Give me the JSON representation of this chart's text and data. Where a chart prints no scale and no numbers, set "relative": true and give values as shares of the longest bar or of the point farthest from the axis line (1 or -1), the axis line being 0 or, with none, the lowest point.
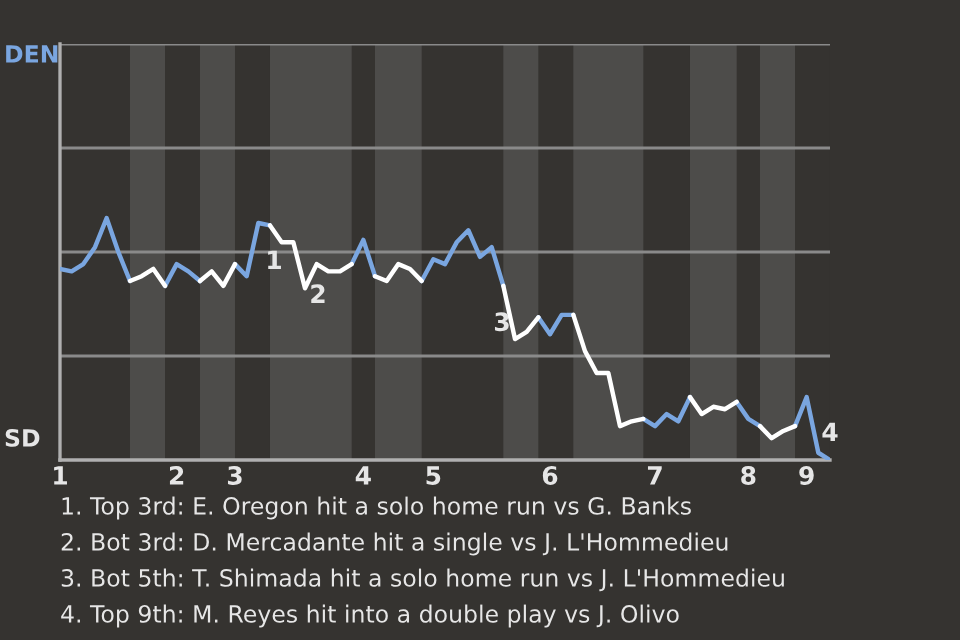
{
  "chart_data": {
    "type": "line",
    "relative": true,
    "categories": [
      "1",
      null,
      null,
      null,
      null,
      null,
      null,
      null,
      null,
      null,
      "2",
      null,
      null,
      null,
      null,
      "3",
      null,
      null,
      null,
      null,
      null,
      null,
      null,
      null,
      null,
      null,
      "4",
      null,
      null,
      null,
      null,
      null,
      "5",
      null,
      null,
      null,
      null,
      null,
      null,
      null,
      null,
      null,
      "6",
      null,
      null,
      null,
      null,
      null,
      null,
      null,
      null,
      "7",
      null,
      null,
      null,
      null,
      null,
      null,
      null,
      "8",
      null,
      null,
      null,
      null,
      "9",
      null,
      null
    ],
    "series": [
      {
        "color": "#7aa6e0",
        "values": [
          0.79,
          0.78,
          0.81,
          0.88,
          1,
          0.86,
          0.74,
          null,
          null,
          0.72,
          0.81,
          0.78,
          0.74,
          null,
          null,
          0.81,
          0.76,
          0.98,
          0.97,
          null,
          null,
          null,
          null,
          null,
          null,
          0.81,
          0.91,
          0.76,
          null,
          null,
          null,
          0.74,
          0.83,
          0.81,
          0.9,
          0.95,
          0.84,
          0.88,
          0.72,
          null,
          null,
          0.59,
          0.52,
          0.6,
          0.6,
          null,
          null,
          null,
          null,
          null,
          0.17,
          0.14,
          0.19,
          0.16,
          0.26,
          null,
          null,
          null,
          0.24,
          0.17,
          0.14,
          null,
          null,
          0.14,
          0.26,
          0.03,
          0
        ]
      },
      {
        "color": "#ffffff",
        "values": [
          null,
          null,
          null,
          null,
          null,
          null,
          0.74,
          0.76,
          0.79,
          0.72,
          null,
          null,
          0.74,
          0.78,
          0.72,
          0.81,
          null,
          null,
          0.97,
          0.9,
          0.9,
          0.71,
          0.81,
          0.78,
          0.78,
          0.81,
          null,
          0.76,
          0.74,
          0.81,
          0.79,
          0.74,
          null,
          null,
          null,
          null,
          null,
          null,
          0.72,
          0.5,
          0.53,
          0.59,
          null,
          null,
          0.6,
          0.45,
          0.36,
          0.36,
          0.14,
          0.16,
          0.17,
          null,
          null,
          null,
          0.26,
          0.19,
          0.22,
          0.21,
          0.24,
          null,
          0.14,
          0.09,
          0.12,
          0.14,
          null,
          null,
          null
        ]
      }
    ],
    "ref_lines": [
      {
        "axis": "y",
        "value": 0.43,
        "color": "#8a8a8a"
      },
      {
        "axis": "y",
        "value": 0.86,
        "color": "#8a8a8a"
      },
      {
        "axis": "y",
        "value": 1.29,
        "color": "#8a8a8a"
      },
      {
        "axis": "y",
        "value": 1.72,
        "color": "#8a8a8a"
      }
    ],
    "annotations": [
      "1",
      "2",
      "3",
      "4",
      "DEN",
      "SD",
      "1. Top 3rd: E. Oregon hit a solo home run vs G. Banks",
      "2. Bot 3rd: D. Mercadante hit a single vs J. L'Hommedieu",
      "3. Bot 5th: T. Shimada hit a solo home run vs J. L'Hommedieu",
      "4. Top 9th: M. Reyes hit into a double play vs J. Olivo"
    ]
  }
}
